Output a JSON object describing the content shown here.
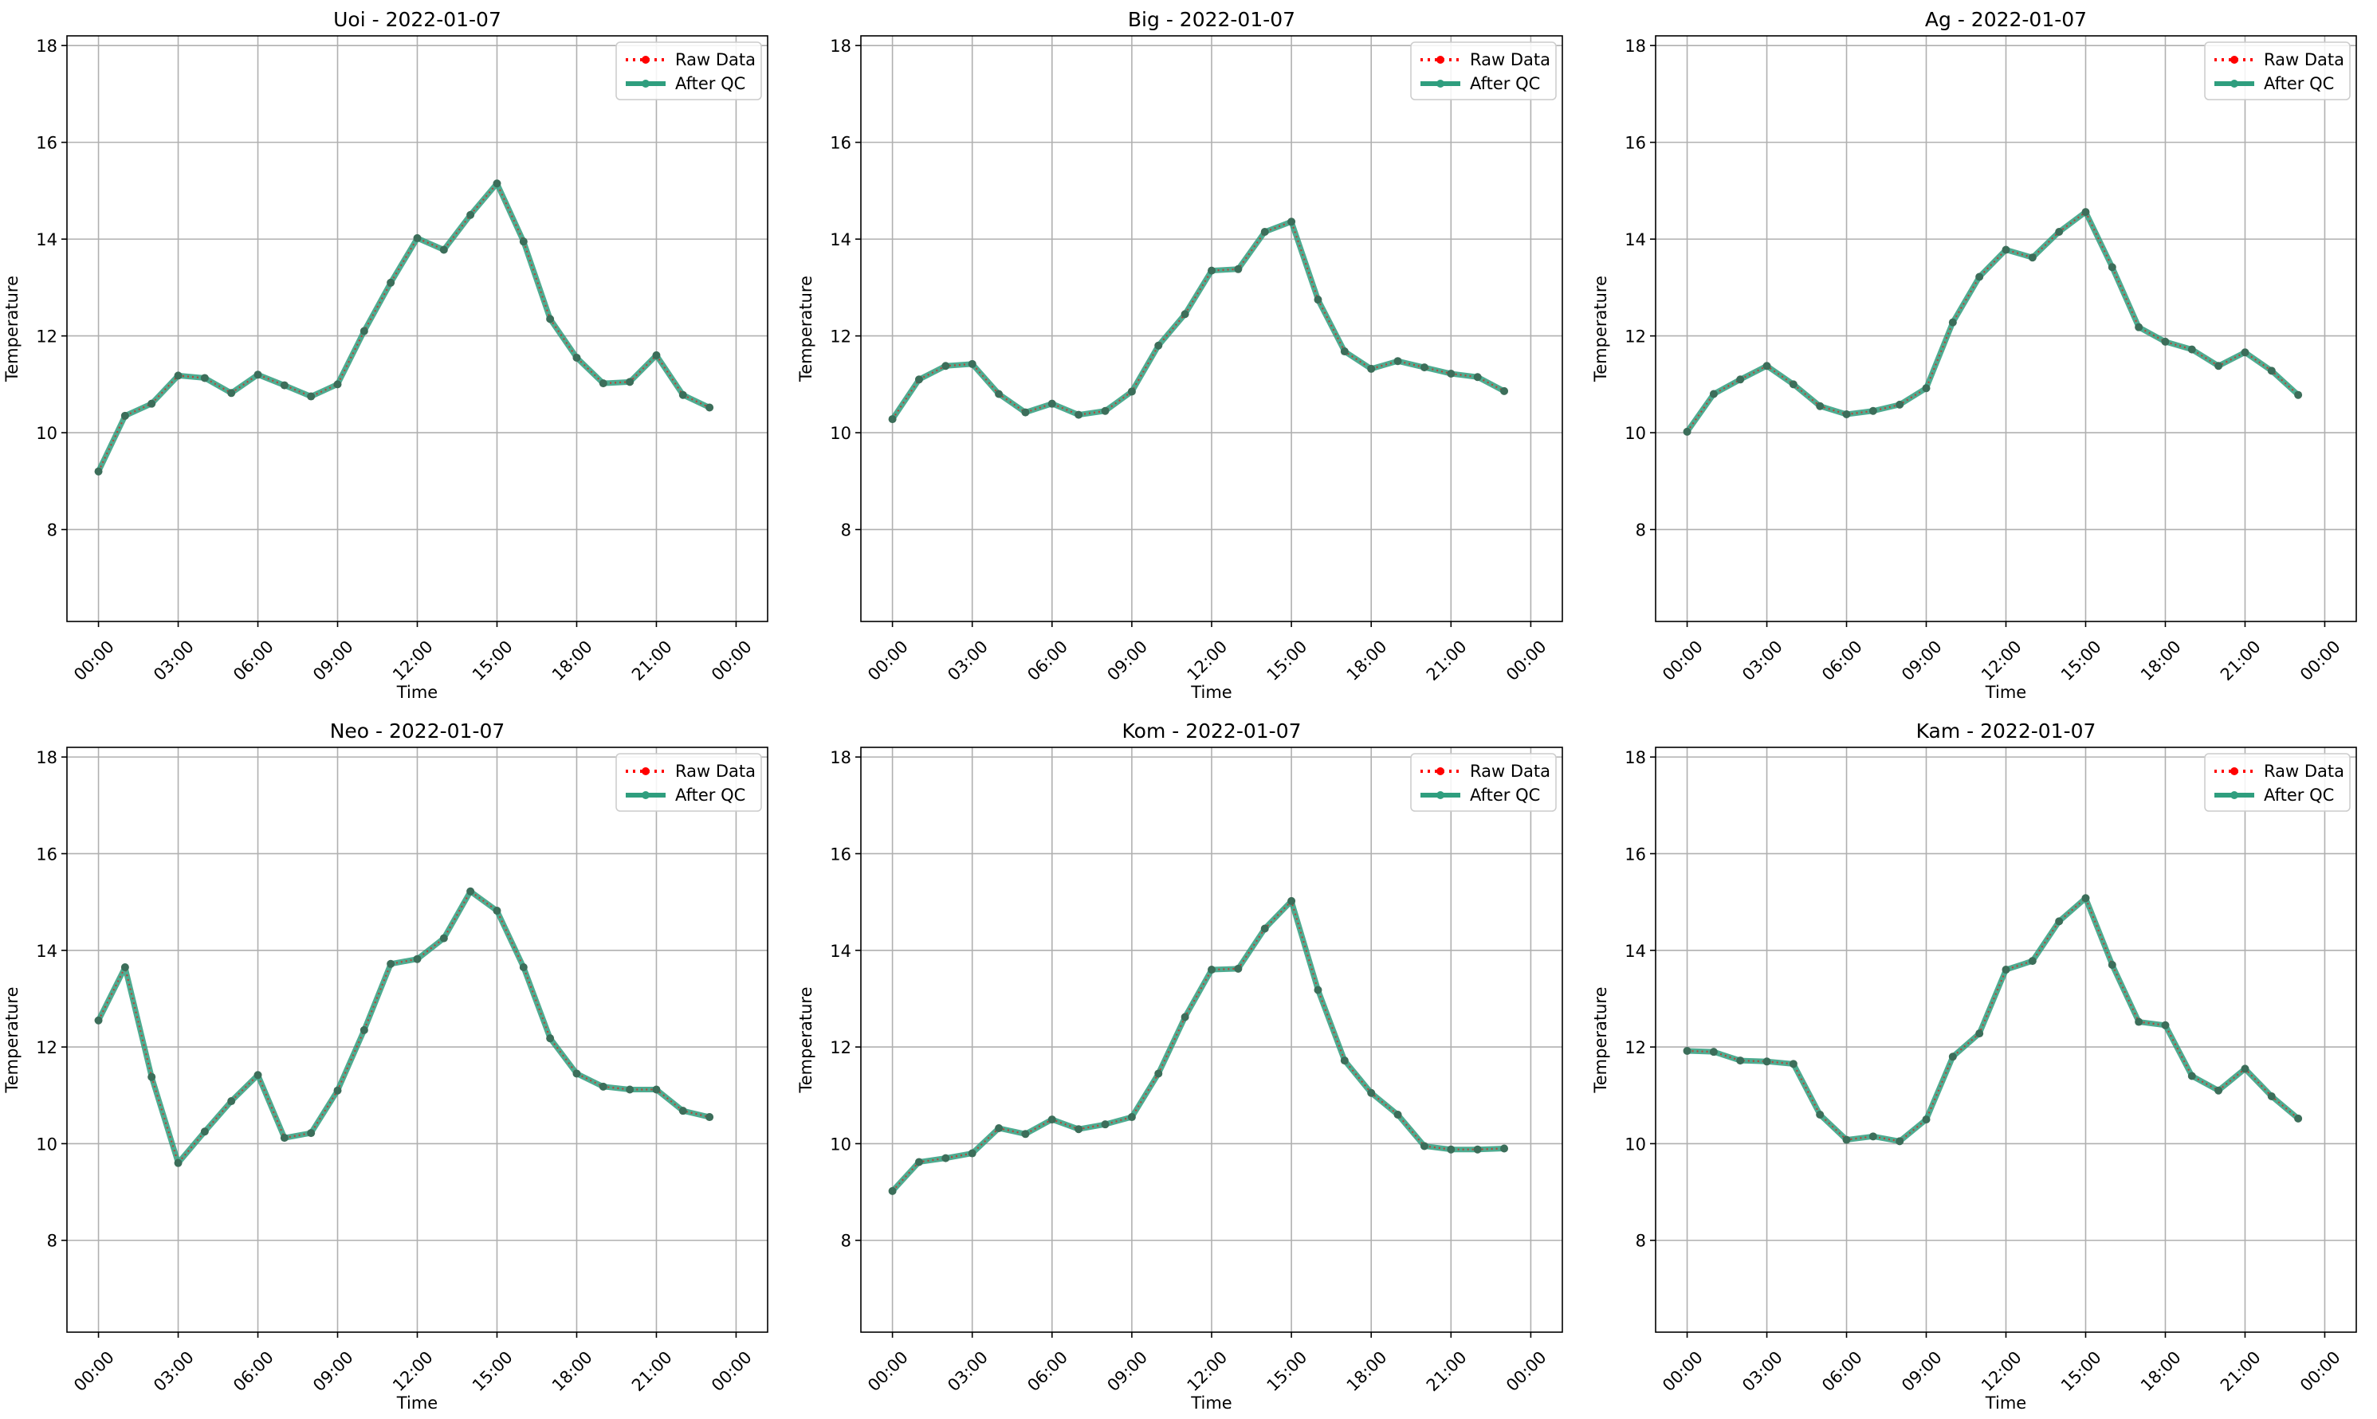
{
  "colors": {
    "raw": "#ff0000",
    "qc": "#2f9e7e",
    "grid": "#b0b0b0",
    "axis": "#000000"
  },
  "legend_labels": {
    "raw": "Raw Data",
    "qc": "After QC"
  },
  "x_tick_labels": [
    "00:00",
    "03:00",
    "06:00",
    "09:00",
    "12:00",
    "15:00",
    "18:00",
    "21:00",
    "00:00"
  ],
  "chart_data": [
    {
      "type": "line",
      "title": "Uoi - 2022-01-07",
      "xlabel": "Time",
      "ylabel": "Temperature",
      "xlim": [
        "2022-01-07 00:00",
        "2022-01-08 00:00"
      ],
      "ylim": [
        6.1,
        18.2
      ],
      "yticks": [
        8,
        10,
        12,
        14,
        16,
        18
      ],
      "grid": true,
      "legend": "top-right",
      "x": [
        "00:00",
        "01:00",
        "02:00",
        "03:00",
        "04:00",
        "05:00",
        "06:00",
        "07:00",
        "08:00",
        "09:00",
        "10:00",
        "11:00",
        "12:00",
        "13:00",
        "14:00",
        "15:00",
        "16:00",
        "17:00",
        "18:00",
        "19:00",
        "20:00",
        "21:00",
        "22:00",
        "23:00"
      ],
      "series": [
        {
          "name": "Raw Data",
          "values": [
            9.2,
            10.35,
            10.6,
            11.18,
            11.13,
            10.82,
            11.2,
            10.98,
            10.75,
            11.0,
            12.1,
            13.1,
            14.02,
            13.78,
            14.5,
            15.15,
            13.95,
            12.35,
            11.55,
            11.02,
            11.05,
            11.6,
            10.78,
            10.52
          ]
        },
        {
          "name": "After QC",
          "values": [
            9.2,
            10.35,
            10.6,
            11.18,
            11.13,
            10.82,
            11.2,
            10.98,
            10.75,
            11.0,
            12.1,
            13.1,
            14.02,
            13.78,
            14.5,
            15.15,
            13.95,
            12.35,
            11.55,
            11.02,
            11.05,
            11.6,
            10.78,
            10.52
          ]
        }
      ]
    },
    {
      "type": "line",
      "title": "Big - 2022-01-07",
      "xlabel": "Time",
      "ylabel": "Temperature",
      "xlim": [
        "2022-01-07 00:00",
        "2022-01-08 00:00"
      ],
      "ylim": [
        6.1,
        18.2
      ],
      "yticks": [
        8,
        10,
        12,
        14,
        16,
        18
      ],
      "grid": true,
      "legend": "top-right",
      "x": [
        "00:00",
        "01:00",
        "02:00",
        "03:00",
        "04:00",
        "05:00",
        "06:00",
        "07:00",
        "08:00",
        "09:00",
        "10:00",
        "11:00",
        "12:00",
        "13:00",
        "14:00",
        "15:00",
        "16:00",
        "17:00",
        "18:00",
        "19:00",
        "20:00",
        "21:00",
        "22:00",
        "23:00"
      ],
      "series": [
        {
          "name": "Raw Data",
          "values": [
            10.28,
            11.1,
            11.38,
            11.42,
            10.8,
            10.42,
            10.6,
            10.37,
            10.45,
            10.85,
            11.8,
            12.45,
            13.35,
            13.38,
            14.15,
            14.36,
            12.75,
            11.68,
            11.32,
            11.48,
            11.35,
            11.22,
            11.15,
            10.86
          ]
        },
        {
          "name": "After QC",
          "values": [
            10.28,
            11.1,
            11.38,
            11.42,
            10.8,
            10.42,
            10.6,
            10.37,
            10.45,
            10.85,
            11.8,
            12.45,
            13.35,
            13.38,
            14.15,
            14.36,
            12.75,
            11.68,
            11.32,
            11.48,
            11.35,
            11.22,
            11.15,
            10.86
          ]
        }
      ]
    },
    {
      "type": "line",
      "title": "Ag - 2022-01-07",
      "xlabel": "Time",
      "ylabel": "Temperature",
      "xlim": [
        "2022-01-07 00:00",
        "2022-01-08 00:00"
      ],
      "ylim": [
        6.1,
        18.2
      ],
      "yticks": [
        8,
        10,
        12,
        14,
        16,
        18
      ],
      "grid": true,
      "legend": "top-right",
      "x": [
        "00:00",
        "01:00",
        "02:00",
        "03:00",
        "04:00",
        "05:00",
        "06:00",
        "07:00",
        "08:00",
        "09:00",
        "10:00",
        "11:00",
        "12:00",
        "13:00",
        "14:00",
        "15:00",
        "16:00",
        "17:00",
        "18:00",
        "19:00",
        "20:00",
        "21:00",
        "22:00",
        "23:00"
      ],
      "series": [
        {
          "name": "Raw Data",
          "values": [
            10.02,
            10.8,
            11.1,
            11.38,
            11.0,
            10.55,
            10.38,
            10.45,
            10.58,
            10.92,
            12.28,
            13.22,
            13.78,
            13.62,
            14.15,
            14.56,
            13.42,
            12.18,
            11.88,
            11.72,
            11.38,
            11.66,
            11.28,
            10.78
          ]
        },
        {
          "name": "After QC",
          "values": [
            10.02,
            10.8,
            11.1,
            11.38,
            11.0,
            10.55,
            10.38,
            10.45,
            10.58,
            10.92,
            12.28,
            13.22,
            13.78,
            13.62,
            14.15,
            14.56,
            13.42,
            12.18,
            11.88,
            11.72,
            11.38,
            11.66,
            11.28,
            10.78
          ]
        }
      ]
    },
    {
      "type": "line",
      "title": "Neo - 2022-01-07",
      "xlabel": "Time",
      "ylabel": "Temperature",
      "xlim": [
        "2022-01-07 00:00",
        "2022-01-08 00:00"
      ],
      "ylim": [
        6.1,
        18.2
      ],
      "yticks": [
        8,
        10,
        12,
        14,
        16,
        18
      ],
      "grid": true,
      "legend": "top-right",
      "x": [
        "00:00",
        "01:00",
        "02:00",
        "03:00",
        "04:00",
        "05:00",
        "06:00",
        "07:00",
        "08:00",
        "09:00",
        "10:00",
        "11:00",
        "12:00",
        "13:00",
        "14:00",
        "15:00",
        "16:00",
        "17:00",
        "18:00",
        "19:00",
        "20:00",
        "21:00",
        "22:00",
        "23:00"
      ],
      "series": [
        {
          "name": "Raw Data",
          "values": [
            12.55,
            13.65,
            11.38,
            9.6,
            10.25,
            10.88,
            11.42,
            10.12,
            10.22,
            11.1,
            12.35,
            13.72,
            13.82,
            14.25,
            15.22,
            14.82,
            13.65,
            12.18,
            11.45,
            11.18,
            11.12,
            11.12,
            10.68,
            10.55
          ]
        },
        {
          "name": "After QC",
          "values": [
            12.55,
            13.65,
            11.38,
            9.6,
            10.25,
            10.88,
            11.42,
            10.12,
            10.22,
            11.1,
            12.35,
            13.72,
            13.82,
            14.25,
            15.22,
            14.82,
            13.65,
            12.18,
            11.45,
            11.18,
            11.12,
            11.12,
            10.68,
            10.55
          ]
        }
      ]
    },
    {
      "type": "line",
      "title": "Kom - 2022-01-07",
      "xlabel": "Time",
      "ylabel": "Temperature",
      "xlim": [
        "2022-01-07 00:00",
        "2022-01-08 00:00"
      ],
      "ylim": [
        6.1,
        18.2
      ],
      "yticks": [
        8,
        10,
        12,
        14,
        16,
        18
      ],
      "grid": true,
      "legend": "top-right",
      "x": [
        "00:00",
        "01:00",
        "02:00",
        "03:00",
        "04:00",
        "05:00",
        "06:00",
        "07:00",
        "08:00",
        "09:00",
        "10:00",
        "11:00",
        "12:00",
        "13:00",
        "14:00",
        "15:00",
        "16:00",
        "17:00",
        "18:00",
        "19:00",
        "20:00",
        "21:00",
        "22:00",
        "23:00"
      ],
      "series": [
        {
          "name": "Raw Data",
          "values": [
            9.02,
            9.62,
            9.7,
            9.8,
            10.32,
            10.2,
            10.5,
            10.3,
            10.4,
            10.55,
            11.45,
            12.62,
            13.6,
            13.62,
            14.45,
            15.02,
            13.18,
            11.72,
            11.05,
            10.6,
            9.95,
            9.88,
            9.88,
            9.9
          ]
        },
        {
          "name": "After QC",
          "values": [
            9.02,
            9.62,
            9.7,
            9.8,
            10.32,
            10.2,
            10.5,
            10.3,
            10.4,
            10.55,
            11.45,
            12.62,
            13.6,
            13.62,
            14.45,
            15.02,
            13.18,
            11.72,
            11.05,
            10.6,
            9.95,
            9.88,
            9.88,
            9.9
          ]
        }
      ]
    },
    {
      "type": "line",
      "title": "Kam - 2022-01-07",
      "xlabel": "Time",
      "ylabel": "Temperature",
      "xlim": [
        "2022-01-07 00:00",
        "2022-01-08 00:00"
      ],
      "ylim": [
        6.1,
        18.2
      ],
      "yticks": [
        8,
        10,
        12,
        14,
        16,
        18
      ],
      "grid": true,
      "legend": "top-right",
      "x": [
        "00:00",
        "01:00",
        "02:00",
        "03:00",
        "04:00",
        "05:00",
        "06:00",
        "07:00",
        "08:00",
        "09:00",
        "10:00",
        "11:00",
        "12:00",
        "13:00",
        "14:00",
        "15:00",
        "16:00",
        "17:00",
        "18:00",
        "19:00",
        "20:00",
        "21:00",
        "22:00",
        "23:00"
      ],
      "series": [
        {
          "name": "Raw Data",
          "values": [
            11.92,
            11.9,
            11.72,
            11.7,
            11.65,
            10.6,
            10.08,
            10.15,
            10.05,
            10.5,
            11.8,
            12.28,
            13.6,
            13.78,
            14.6,
            15.08,
            13.7,
            12.52,
            12.45,
            11.4,
            11.1,
            11.55,
            10.98,
            10.52
          ]
        },
        {
          "name": "After QC",
          "values": [
            11.92,
            11.9,
            11.72,
            11.7,
            11.65,
            10.6,
            10.08,
            10.15,
            10.05,
            10.5,
            11.8,
            12.28,
            13.6,
            13.78,
            14.6,
            15.08,
            13.7,
            12.52,
            12.45,
            11.4,
            11.1,
            11.55,
            10.98,
            10.52
          ]
        }
      ]
    }
  ]
}
